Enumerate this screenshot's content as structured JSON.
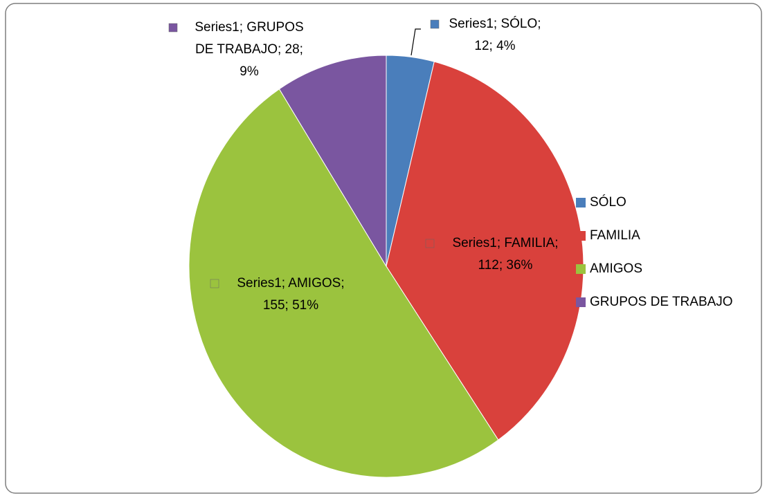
{
  "chart_data": {
    "type": "pie",
    "categories": [
      "SÓLO",
      "FAMILIA",
      "AMIGOS",
      "GRUPOS DE TRABAJO"
    ],
    "values": [
      12,
      112,
      155,
      28
    ],
    "value_labels": [
      [
        "Series1; SÓLO;",
        "12; 4%"
      ],
      [
        "Series1; FAMILIA;",
        "112; 36%"
      ],
      [
        "Series1; AMIGOS;",
        "155; 51%"
      ],
      [
        "Series1; GRUPOS",
        "DE TRABAJO; 28;",
        "9%"
      ]
    ],
    "colors": [
      "#4a7ebb",
      "#d9413c",
      "#9bc33e",
      "#7a56a0"
    ],
    "legend": "right"
  }
}
